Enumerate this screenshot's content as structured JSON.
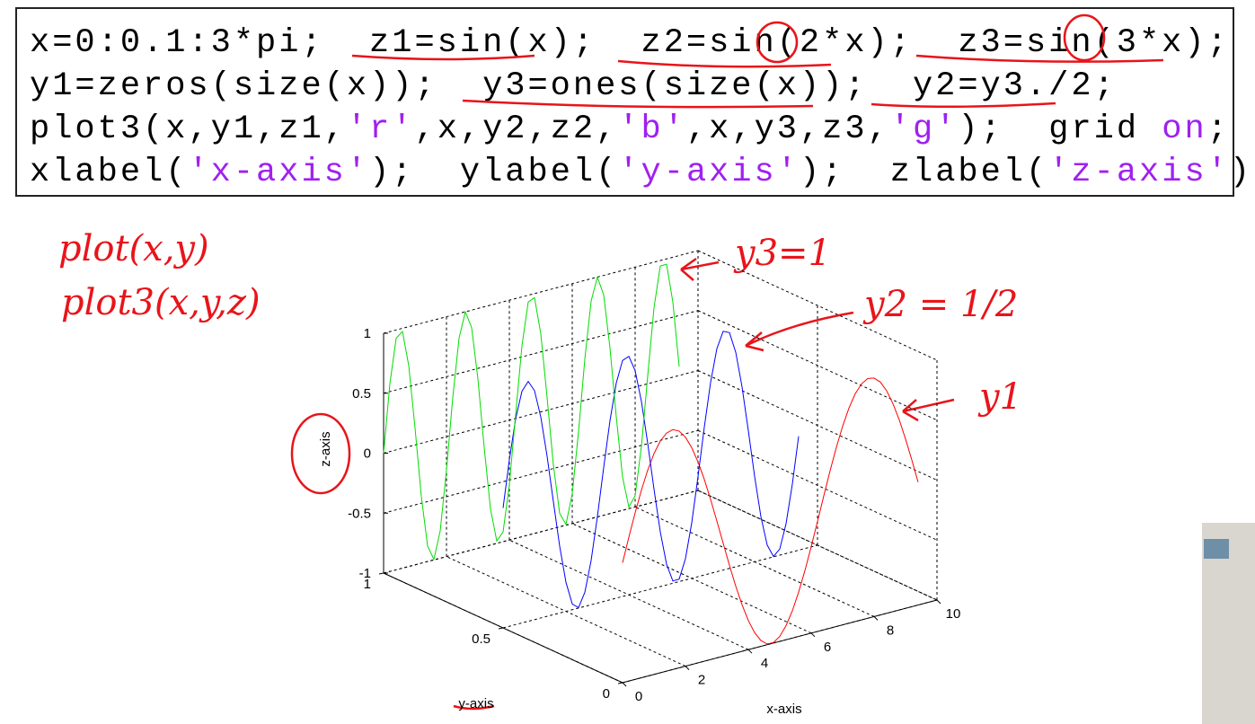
{
  "code": {
    "lines": [
      [
        {
          "text": "x=0:0.1:3*pi;  z1=sin(x);  z2=sin(2*x);  z3=sin(3*x);",
          "style": "plain"
        }
      ],
      [
        {
          "text": "y1=zeros(size(x));  y3=ones(size(x));  y2=y3./2;",
          "style": "plain"
        }
      ],
      [
        {
          "text": "plot3(x,y1,z1,",
          "style": "plain"
        },
        {
          "text": "'r'",
          "style": "string"
        },
        {
          "text": ",x,y2,z2,",
          "style": "plain"
        },
        {
          "text": "'b'",
          "style": "string"
        },
        {
          "text": ",x,y3,z3,",
          "style": "plain"
        },
        {
          "text": "'g'",
          "style": "string"
        },
        {
          "text": ");  grid ",
          "style": "plain"
        },
        {
          "text": "on",
          "style": "string"
        },
        {
          "text": ";",
          "style": "plain"
        }
      ],
      [
        {
          "text": "xlabel(",
          "style": "plain"
        },
        {
          "text": "'x-axis'",
          "style": "string"
        },
        {
          "text": ");  ylabel(",
          "style": "plain"
        },
        {
          "text": "'y-axis'",
          "style": "string"
        },
        {
          "text": ");  zlabel(",
          "style": "plain"
        },
        {
          "text": "'z-axis'",
          "style": "string"
        },
        {
          "text": ");",
          "style": "plain"
        }
      ]
    ]
  },
  "annotations": [
    "plot(x,y)",
    "plot3(x,y,z)",
    "y3=1",
    "y2 = 1/2",
    "y1"
  ],
  "chart_data": {
    "type": "line3d",
    "grid": true,
    "xlabel": "x-axis",
    "ylabel": "y-axis",
    "zlabel": "z-axis",
    "xlim": [
      0,
      10
    ],
    "xticks": [
      0,
      2,
      4,
      6,
      8,
      10
    ],
    "ylim": [
      0,
      1
    ],
    "yticks": [
      0,
      0.5,
      1
    ],
    "zlim": [
      -1,
      1
    ],
    "zticks": [
      -1,
      -0.5,
      0,
      0.5,
      1
    ],
    "x": [
      0,
      0.2,
      0.4,
      0.6,
      0.8,
      1.0,
      1.2,
      1.4,
      1.6,
      1.8,
      2.0,
      2.2,
      2.4,
      2.6,
      2.8,
      3.0,
      3.2,
      3.4,
      3.6,
      3.8,
      4.0,
      4.2,
      4.4,
      4.6,
      4.8,
      5.0,
      5.2,
      5.4,
      5.6,
      5.8,
      6.0,
      6.2,
      6.4,
      6.6,
      6.8,
      7.0,
      7.2,
      7.4,
      7.6,
      7.8,
      8.0,
      8.2,
      8.4,
      8.6,
      8.8,
      9.0,
      9.2,
      9.4
    ],
    "series": [
      {
        "color": "#ff0000",
        "y": 0,
        "values": [
          0,
          0.199,
          0.389,
          0.565,
          0.717,
          0.841,
          0.932,
          0.985,
          1.0,
          0.974,
          0.909,
          0.808,
          0.675,
          0.516,
          0.335,
          0.141,
          -0.058,
          -0.256,
          -0.443,
          -0.612,
          -0.757,
          -0.872,
          -0.952,
          -0.994,
          -0.996,
          -0.959,
          -0.883,
          -0.773,
          -0.631,
          -0.465,
          -0.279,
          -0.083,
          0.117,
          0.312,
          0.494,
          0.657,
          0.794,
          0.899,
          0.968,
          0.999,
          0.989,
          0.941,
          0.855,
          0.734,
          0.585,
          0.412,
          0.223,
          0.025
        ]
      },
      {
        "color": "#0000ff",
        "y": 0.5,
        "values": [
          0,
          0.389,
          0.717,
          0.932,
          1.0,
          0.909,
          0.675,
          0.335,
          -0.058,
          -0.443,
          -0.757,
          -0.952,
          -0.996,
          -0.883,
          -0.631,
          -0.279,
          0.117,
          0.494,
          0.794,
          0.968,
          0.989,
          0.855,
          0.585,
          0.223,
          -0.174,
          -0.544,
          -0.828,
          -0.981,
          -0.979,
          -0.823,
          -0.537,
          -0.165,
          0.232,
          0.592,
          0.86,
          0.991,
          0.966,
          0.788,
          0.486,
          0.107,
          -0.288,
          -0.638,
          -0.888,
          -0.997,
          -0.949,
          -0.751,
          -0.435,
          -0.05
        ]
      },
      {
        "color": "#00dd00",
        "y": 1,
        "values": [
          0,
          0.565,
          0.932,
          0.974,
          0.675,
          0.141,
          -0.443,
          -0.872,
          -0.996,
          -0.773,
          -0.279,
          0.312,
          0.794,
          0.999,
          0.855,
          0.412,
          -0.174,
          -0.7,
          -0.981,
          -0.919,
          -0.537,
          0.034,
          0.592,
          0.944,
          0.966,
          0.65,
          0.107,
          -0.472,
          -0.888,
          -0.993,
          -0.751,
          -0.248,
          0.343,
          0.813,
          1.0,
          0.837,
          0.382,
          -0.207,
          -0.724,
          -0.987,
          -0.906,
          -0.508,
          0.067,
          0.619,
          0.954,
          0.956,
          0.625,
          0.075
        ]
      }
    ]
  }
}
